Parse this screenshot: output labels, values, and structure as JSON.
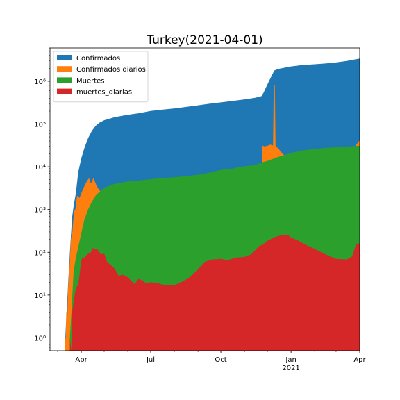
{
  "chart_data": {
    "type": "area",
    "title": "Turkey(2021-04-01)",
    "xlabel": "",
    "ylabel": "",
    "yscale": "log",
    "ylim": [
      0.5,
      6000000
    ],
    "xlim": [
      "2020-02-20",
      "2021-04-01"
    ],
    "grid": false,
    "legend_position": "top-left",
    "x_ticks": [
      {
        "date": "2020-04-01",
        "label": "Apr",
        "sublabel": ""
      },
      {
        "date": "2020-07-01",
        "label": "Jul",
        "sublabel": ""
      },
      {
        "date": "2020-10-01",
        "label": "Oct",
        "sublabel": ""
      },
      {
        "date": "2021-01-01",
        "label": "Jan",
        "sublabel": "2021"
      },
      {
        "date": "2021-04-01",
        "label": "Apr",
        "sublabel": ""
      }
    ],
    "y_ticks": [
      {
        "value": 1,
        "label": "10⁰"
      },
      {
        "value": 10,
        "label": "10¹"
      },
      {
        "value": 100,
        "label": "10²"
      },
      {
        "value": 1000,
        "label": "10³"
      },
      {
        "value": 10000,
        "label": "10⁴"
      },
      {
        "value": 100000,
        "label": "10⁵"
      },
      {
        "value": 1000000,
        "label": "10⁶"
      }
    ],
    "series": [
      {
        "name": "Confirmados",
        "color": "#1f77b4",
        "style": "area",
        "points": [
          [
            "2020-03-11",
            1
          ],
          [
            "2020-03-13",
            5
          ],
          [
            "2020-03-16",
            47
          ],
          [
            "2020-03-18",
            191
          ],
          [
            "2020-03-20",
            670
          ],
          [
            "2020-03-22",
            1236
          ],
          [
            "2020-03-25",
            2433
          ],
          [
            "2020-03-28",
            7402
          ],
          [
            "2020-04-01",
            15679
          ],
          [
            "2020-04-05",
            27069
          ],
          [
            "2020-04-10",
            47029
          ],
          [
            "2020-04-15",
            69392
          ],
          [
            "2020-04-20",
            90980
          ],
          [
            "2020-04-25",
            107773
          ],
          [
            "2020-05-01",
            122392
          ],
          [
            "2020-05-15",
            144749
          ],
          [
            "2020-06-01",
            164769
          ],
          [
            "2020-06-15",
            178239
          ],
          [
            "2020-07-01",
            201098
          ],
          [
            "2020-07-15",
            214993
          ],
          [
            "2020-08-01",
            230873
          ],
          [
            "2020-08-15",
            249309
          ],
          [
            "2020-09-01",
            273301
          ],
          [
            "2020-09-15",
            295512
          ],
          [
            "2020-10-01",
            320070
          ],
          [
            "2020-10-15",
            343955
          ],
          [
            "2020-11-01",
            375367
          ],
          [
            "2020-11-15",
            410000
          ],
          [
            "2020-11-24",
            453535
          ],
          [
            "2020-11-28",
            650000
          ],
          [
            "2020-12-03",
            1000000
          ],
          [
            "2020-12-10",
            1780000
          ],
          [
            "2020-12-15",
            1930000
          ],
          [
            "2021-01-01",
            2220000
          ],
          [
            "2021-01-15",
            2380000
          ],
          [
            "2021-02-01",
            2490000
          ],
          [
            "2021-02-15",
            2600000
          ],
          [
            "2021-03-01",
            2750000
          ],
          [
            "2021-03-15",
            2970000
          ],
          [
            "2021-04-01",
            3400000
          ]
        ]
      },
      {
        "name": "Confirmados diarios",
        "color": "#ff7f0e",
        "style": "area+line",
        "points": [
          [
            "2020-03-11",
            1
          ],
          [
            "2020-03-12",
            0.5
          ],
          [
            "2020-03-13",
            4
          ],
          [
            "2020-03-14",
            0.5
          ],
          [
            "2020-03-15",
            12
          ],
          [
            "2020-03-17",
            35
          ],
          [
            "2020-03-19",
            200
          ],
          [
            "2020-03-21",
            300
          ],
          [
            "2020-03-23",
            900
          ],
          [
            "2020-03-25",
            1000
          ],
          [
            "2020-03-27",
            2000
          ],
          [
            "2020-03-30",
            1800
          ],
          [
            "2020-04-01",
            2200
          ],
          [
            "2020-04-04",
            3000
          ],
          [
            "2020-04-07",
            3900
          ],
          [
            "2020-04-10",
            4800
          ],
          [
            "2020-04-11",
            5100
          ],
          [
            "2020-04-13",
            4000
          ],
          [
            "2020-04-15",
            4200
          ],
          [
            "2020-04-17",
            5100
          ],
          [
            "2020-04-20",
            3700
          ],
          [
            "2020-04-24",
            2800
          ],
          [
            "2020-05-01",
            2200
          ],
          [
            "2020-05-08",
            1500
          ],
          [
            "2020-05-15",
            1500
          ],
          [
            "2020-05-22",
            1000
          ],
          [
            "2020-05-28",
            950
          ],
          [
            "2020-06-01",
            900
          ],
          [
            "2020-06-05",
            950
          ],
          [
            "2020-06-10",
            1200
          ],
          [
            "2020-06-14",
            1500
          ],
          [
            "2020-06-20",
            1400
          ],
          [
            "2020-06-28",
            1300
          ],
          [
            "2020-07-05",
            1100
          ],
          [
            "2020-07-15",
            940
          ],
          [
            "2020-07-25",
            920
          ],
          [
            "2020-08-05",
            1100
          ],
          [
            "2020-08-20",
            1300
          ],
          [
            "2020-09-01",
            1500
          ],
          [
            "2020-09-10",
            1700
          ],
          [
            "2020-09-20",
            1600
          ],
          [
            "2020-10-01",
            1400
          ],
          [
            "2020-10-10",
            1600
          ],
          [
            "2020-10-20",
            2000
          ],
          [
            "2020-11-01",
            2400
          ],
          [
            "2020-11-10",
            2900
          ],
          [
            "2020-11-15",
            3400
          ],
          [
            "2020-11-20",
            5000
          ],
          [
            "2020-11-24",
            7000
          ],
          [
            "2020-11-25",
            30000
          ],
          [
            "2020-11-27",
            29000
          ],
          [
            "2020-12-01",
            30000
          ],
          [
            "2020-12-05",
            32000
          ],
          [
            "2020-12-09",
            30000
          ],
          [
            "2020-12-10",
            820000
          ],
          [
            "2020-12-11",
            30000
          ],
          [
            "2020-12-15",
            26000
          ],
          [
            "2020-12-20",
            20000
          ],
          [
            "2020-12-25",
            17000
          ],
          [
            "2021-01-01",
            13000
          ],
          [
            "2021-01-08",
            11000
          ],
          [
            "2021-01-15",
            8000
          ],
          [
            "2021-01-25",
            6500
          ],
          [
            "2021-02-01",
            6000
          ],
          [
            "2021-02-10",
            7500
          ],
          [
            "2021-02-20",
            8000
          ],
          [
            "2021-03-01",
            10000
          ],
          [
            "2021-03-10",
            13000
          ],
          [
            "2021-03-20",
            20000
          ],
          [
            "2021-03-27",
            30000
          ],
          [
            "2021-04-01",
            40000
          ]
        ]
      },
      {
        "name": "Muertes",
        "color": "#2ca02c",
        "style": "area",
        "points": [
          [
            "2020-03-17",
            1
          ],
          [
            "2020-03-19",
            4
          ],
          [
            "2020-03-22",
            37
          ],
          [
            "2020-03-25",
            75
          ],
          [
            "2020-03-28",
            131
          ],
          [
            "2020-04-01",
            277
          ],
          [
            "2020-04-05",
            574
          ],
          [
            "2020-04-10",
            1006
          ],
          [
            "2020-04-15",
            1518
          ],
          [
            "2020-04-20",
            2140
          ],
          [
            "2020-05-01",
            3258
          ],
          [
            "2020-05-15",
            4007
          ],
          [
            "2020-06-01",
            4540
          ],
          [
            "2020-06-15",
            4778
          ],
          [
            "2020-07-01",
            5131
          ],
          [
            "2020-07-15",
            5440
          ],
          [
            "2020-08-01",
            5710
          ],
          [
            "2020-08-15",
            6000
          ],
          [
            "2020-09-01",
            6511
          ],
          [
            "2020-09-15",
            7200
          ],
          [
            "2020-10-01",
            8441
          ],
          [
            "2020-10-15",
            9000
          ],
          [
            "2020-11-01",
            10250
          ],
          [
            "2020-11-15",
            11000
          ],
          [
            "2020-11-24",
            12672
          ],
          [
            "2020-12-01",
            13746
          ],
          [
            "2020-12-15",
            17000
          ],
          [
            "2021-01-01",
            21000
          ],
          [
            "2021-01-15",
            24000
          ],
          [
            "2021-02-01",
            26000
          ],
          [
            "2021-02-15",
            27600
          ],
          [
            "2021-03-01",
            28500
          ],
          [
            "2021-03-15",
            29700
          ],
          [
            "2021-04-01",
            31000
          ]
        ]
      },
      {
        "name": "muertes_diarias",
        "color": "#d62728",
        "style": "area",
        "points": [
          [
            "2020-03-17",
            1
          ],
          [
            "2020-03-19",
            0.5
          ],
          [
            "2020-03-20",
            4
          ],
          [
            "2020-03-22",
            7
          ],
          [
            "2020-03-25",
            15
          ],
          [
            "2020-03-28",
            17
          ],
          [
            "2020-04-01",
            63
          ],
          [
            "2020-04-03",
            79
          ],
          [
            "2020-04-05",
            73
          ],
          [
            "2020-04-08",
            87
          ],
          [
            "2020-04-11",
            95
          ],
          [
            "2020-04-13",
            97
          ],
          [
            "2020-04-16",
            125
          ],
          [
            "2020-04-19",
            121
          ],
          [
            "2020-04-22",
            119
          ],
          [
            "2020-04-25",
            99
          ],
          [
            "2020-04-28",
            90
          ],
          [
            "2020-05-01",
            93
          ],
          [
            "2020-05-05",
            59
          ],
          [
            "2020-05-10",
            50
          ],
          [
            "2020-05-15",
            41
          ],
          [
            "2020-05-20",
            28
          ],
          [
            "2020-05-25",
            30
          ],
          [
            "2020-06-01",
            26
          ],
          [
            "2020-06-05",
            22
          ],
          [
            "2020-06-10",
            18
          ],
          [
            "2020-06-15",
            24
          ],
          [
            "2020-06-20",
            22
          ],
          [
            "2020-06-25",
            19
          ],
          [
            "2020-07-01",
            20
          ],
          [
            "2020-07-10",
            19
          ],
          [
            "2020-07-20",
            17
          ],
          [
            "2020-08-01",
            17
          ],
          [
            "2020-08-10",
            20
          ],
          [
            "2020-08-20",
            25
          ],
          [
            "2020-09-01",
            40
          ],
          [
            "2020-09-10",
            60
          ],
          [
            "2020-09-20",
            68
          ],
          [
            "2020-10-01",
            70
          ],
          [
            "2020-10-10",
            65
          ],
          [
            "2020-10-20",
            75
          ],
          [
            "2020-11-01",
            78
          ],
          [
            "2020-11-10",
            90
          ],
          [
            "2020-11-20",
            140
          ],
          [
            "2020-11-25",
            150
          ],
          [
            "2020-12-01",
            185
          ],
          [
            "2020-12-10",
            225
          ],
          [
            "2020-12-20",
            254
          ],
          [
            "2020-12-28",
            258
          ],
          [
            "2021-01-01",
            220
          ],
          [
            "2021-01-10",
            190
          ],
          [
            "2021-01-20",
            150
          ],
          [
            "2021-02-01",
            120
          ],
          [
            "2021-02-15",
            90
          ],
          [
            "2021-03-01",
            70
          ],
          [
            "2021-03-15",
            68
          ],
          [
            "2021-03-22",
            80
          ],
          [
            "2021-03-26",
            130
          ],
          [
            "2021-03-28",
            160
          ],
          [
            "2021-04-01",
            160
          ]
        ]
      }
    ]
  }
}
